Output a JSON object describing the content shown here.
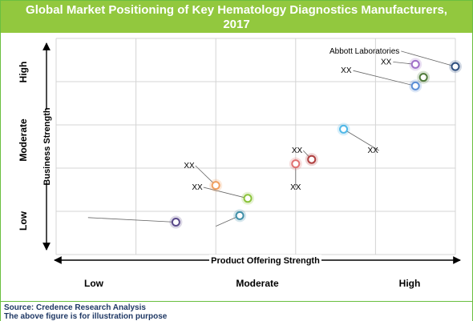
{
  "title_lines": [
    "Global Market Positioning of Key Hematology Diagnostics Manufacturers,",
    "2017"
  ],
  "footer": {
    "source": "Source: Credence Research Analysis",
    "note": "The above figure is for illustration purpose"
  },
  "chart_data": {
    "type": "scatter",
    "title": "Global Market Positioning of Key Hematology Diagnostics Manufacturers, 2017",
    "xlabel": "Product Offering Strength",
    "ylabel": "Business Strength",
    "x_scale_labels": [
      "Low",
      "Moderate",
      "High"
    ],
    "y_scale_labels": [
      "Low",
      "Moderate",
      "High"
    ],
    "xlim": [
      0,
      5
    ],
    "ylim": [
      0,
      5
    ],
    "grid": true,
    "points": [
      {
        "x": 1.5,
        "y": 0.75,
        "color": "#5a4a8a",
        "label": "",
        "label_x": 0.4,
        "label_y": 0.8,
        "label_anchor": "start",
        "leader": true
      },
      {
        "x": 2.3,
        "y": 0.9,
        "color": "#3f8fa8",
        "label": "",
        "label_x": 2.0,
        "label_y": 0.6,
        "label_anchor": "start",
        "leader": true
      },
      {
        "x": 2.0,
        "y": 1.6,
        "color": "#f0a060",
        "label": "XX",
        "label_x": 1.6,
        "label_y": 2.0,
        "label_anchor": "start",
        "leader": true
      },
      {
        "x": 2.4,
        "y": 1.3,
        "color": "#8cc43c",
        "label": "XX",
        "label_x": 1.7,
        "label_y": 1.5,
        "label_anchor": "start",
        "leader": true
      },
      {
        "x": 3.0,
        "y": 2.1,
        "color": "#e07070",
        "label": "XX",
        "label_x": 3.0,
        "label_y": 1.5,
        "label_anchor": "middle",
        "leader": true
      },
      {
        "x": 3.2,
        "y": 2.2,
        "color": "#b04040",
        "label": "XX",
        "label_x": 2.95,
        "label_y": 2.35,
        "label_anchor": "start",
        "leader": true
      },
      {
        "x": 3.6,
        "y": 2.9,
        "color": "#4fb8e8",
        "label": "XX",
        "label_x": 3.9,
        "label_y": 2.35,
        "label_anchor": "start",
        "leader": true
      },
      {
        "x": 4.5,
        "y": 3.9,
        "color": "#5b8ed6",
        "label": "XX",
        "label_x": 3.7,
        "label_y": 4.2,
        "label_anchor": "end",
        "leader": true
      },
      {
        "x": 4.6,
        "y": 4.1,
        "color": "#4f7a3a",
        "label": "",
        "label_x": 4.6,
        "label_y": 4.1,
        "label_anchor": "start",
        "leader": false
      },
      {
        "x": 4.5,
        "y": 4.4,
        "color": "#a070c8",
        "label": "XX",
        "label_x": 4.2,
        "label_y": 4.4,
        "label_anchor": "end",
        "leader": true
      },
      {
        "x": 5.0,
        "y": 4.35,
        "color": "#2f4f7f",
        "label": "Abbott Laboratories",
        "label_x": 4.3,
        "label_y": 4.65,
        "label_anchor": "end",
        "leader": true
      }
    ]
  }
}
